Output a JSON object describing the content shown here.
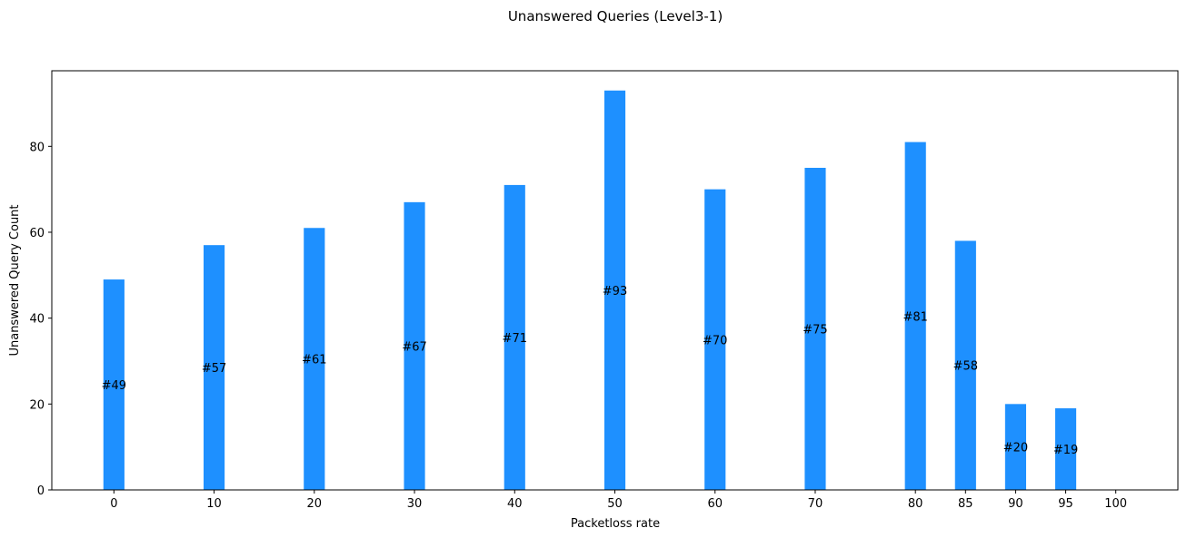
{
  "chart_data": {
    "type": "bar",
    "title": "Unanswered Queries (Level3-1)",
    "xlabel": "Packetloss rate",
    "ylabel": "Unanswered Query Count",
    "x": [
      0,
      10,
      20,
      30,
      40,
      50,
      60,
      70,
      80,
      85,
      90,
      95,
      100
    ],
    "values": [
      49,
      57,
      61,
      67,
      71,
      93,
      70,
      75,
      81,
      58,
      20,
      19,
      0
    ],
    "data_labels": [
      "#49",
      "#57",
      "#61",
      "#67",
      "#71",
      "#93",
      "#70",
      "#75",
      "#81",
      "#58",
      "#20",
      "#19",
      ""
    ],
    "xticks": [
      "0",
      "10",
      "20",
      "30",
      "40",
      "50",
      "60",
      "70",
      "80",
      "85",
      "90",
      "95",
      "100"
    ],
    "yticks": [
      0,
      20,
      40,
      60,
      80
    ],
    "xlim": [
      -6.2,
      106.2
    ],
    "ylim": [
      0,
      97.6
    ],
    "bar_color": "#1e90ff",
    "grid": false,
    "legend": "none"
  }
}
